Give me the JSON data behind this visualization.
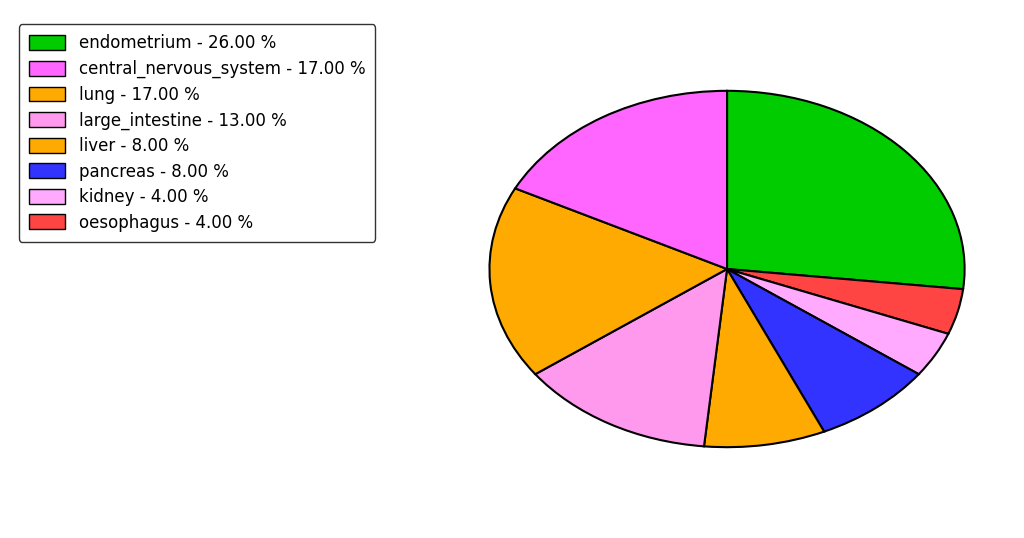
{
  "labels": [
    "endometrium",
    "oesophagus",
    "kidney",
    "pancreas",
    "liver",
    "large_intestine",
    "lung",
    "central_nervous_system"
  ],
  "values": [
    26.0,
    4.0,
    4.0,
    8.0,
    8.0,
    13.0,
    17.0,
    17.0
  ],
  "colors": [
    "#00cc00",
    "#ff4444",
    "#ffaaff",
    "#3333ff",
    "#ffaa00",
    "#ff99ee",
    "#ffaa00",
    "#ff66ff"
  ],
  "legend_labels": [
    "endometrium - 26.00 %",
    "central_nervous_system - 17.00 %",
    "lung - 17.00 %",
    "large_intestine - 13.00 %",
    "liver - 8.00 %",
    "pancreas - 8.00 %",
    "kidney - 4.00 %",
    "oesophagus - 4.00 %"
  ],
  "legend_colors": [
    "#00cc00",
    "#ff66ff",
    "#ffaa00",
    "#ff99ee",
    "#ffaa00",
    "#3333ff",
    "#ffaaff",
    "#ff4444"
  ],
  "startangle": 90,
  "figsize": [
    10.24,
    5.38
  ],
  "dpi": 100
}
